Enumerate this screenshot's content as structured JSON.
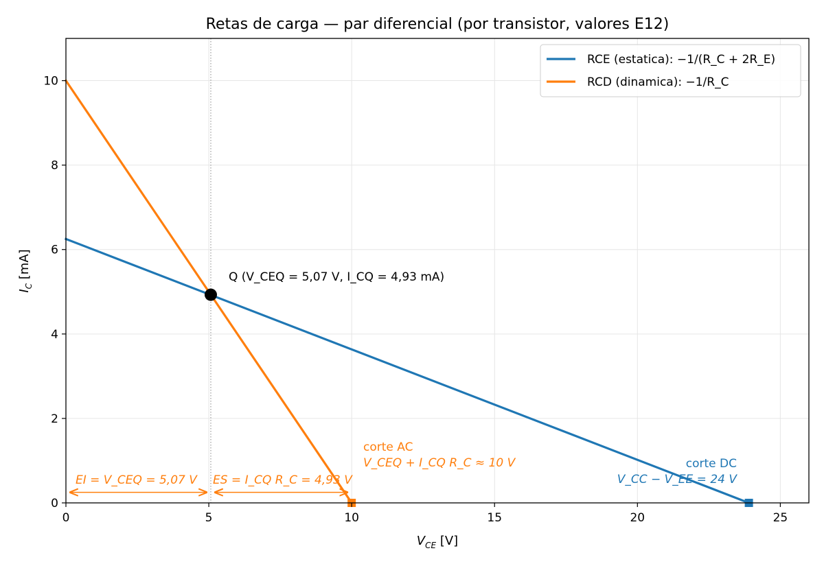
{
  "chart_data": {
    "type": "line",
    "title": "Retas de carga — par diferencial (por transistor, valores E12)",
    "xlabel": {
      "main": "V",
      "sub": "CE",
      "unit": " [V]"
    },
    "ylabel": {
      "main": "I",
      "sub": "C",
      "unit": " [mA]"
    },
    "xlim": [
      0,
      26
    ],
    "ylim": [
      0,
      11
    ],
    "xticks": [
      "0",
      "5",
      "10",
      "15",
      "20",
      "25"
    ],
    "xtick_values": [
      0,
      5,
      10,
      15,
      20,
      25
    ],
    "yticks": [
      "0",
      "2",
      "4",
      "6",
      "8",
      "10"
    ],
    "ytick_values": [
      0,
      2,
      4,
      6,
      8,
      10
    ],
    "grid": true,
    "legend_position": "top-right",
    "series": [
      {
        "name": "RCE (estatica): −1/(R_C + 2R_E)",
        "color": "#1f77b4",
        "x": [
          0,
          23.9
        ],
        "y": [
          6.25,
          0
        ]
      },
      {
        "name": "RCD (dinamica): −1/R_C",
        "color": "#ff7f0e",
        "x": [
          0,
          10
        ],
        "y": [
          10.0,
          0
        ]
      }
    ],
    "q_point": {
      "x": 5.07,
      "y": 4.93,
      "color": "#000000"
    },
    "vline_x": 5.07,
    "endpoints": [
      {
        "x": 10,
        "y": 0,
        "color": "#ff7f0e"
      },
      {
        "x": 23.9,
        "y": 0,
        "color": "#1f77b4"
      }
    ],
    "arrows": [
      {
        "from": 0,
        "to": 5.07,
        "y": 0.25,
        "color": "#ff7f0e"
      },
      {
        "from": 5.07,
        "to": 10,
        "y": 0.25,
        "color": "#ff7f0e"
      }
    ],
    "annotations": {
      "q_label": "Q  (V_CEQ = 5,07 V, I_CQ = 4,93 mA)",
      "ei_label": "EI = V_CEQ = 5,07 V",
      "es_label": "ES = I_CQ R_C = 4,93 V",
      "corte_ac_line1": "corte AC",
      "corte_ac_line2": "V_CEQ + I_CQ R_C ≈ 10 V",
      "corte_dc_line1": "corte DC",
      "corte_dc_line2": "V_CC − V_EE = 24 V"
    }
  },
  "colors": {
    "blue": "#1f77b4",
    "orange": "#ff7f0e",
    "grid": "#e6e6e6",
    "vline": "#999999"
  }
}
